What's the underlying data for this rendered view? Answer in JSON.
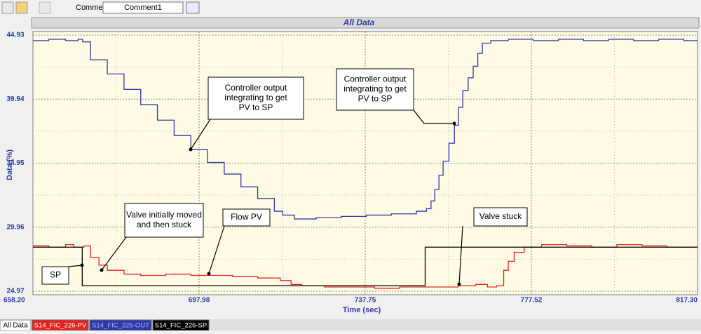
{
  "toolbar": {
    "comment_label": "Comment",
    "comment_value": "Comment1"
  },
  "tabs": [
    "All Data"
  ],
  "chart_data": {
    "type": "line",
    "title": "All Data",
    "x_label": "Time (sec)",
    "y_label": "Data (%)",
    "xlim": [
      658.2,
      817.3
    ],
    "xticks": [
      {
        "value": 658.2,
        "label": "658.20"
      },
      697.98,
      737.75,
      777.52,
      {
        "value": 817.3,
        "label": "817.30"
      }
    ],
    "ylim": [
      24.97,
      44.93
    ],
    "yticks": [
      24.97,
      29.96,
      34.95,
      39.94,
      44.93
    ],
    "grid": true,
    "series": [
      {
        "name": "S14_FIC_226-PV",
        "color": "#e8231e",
        "x": [
          658.2,
          662,
          666,
          668,
          670.4,
          672,
          674,
          676,
          680,
          684,
          690,
          696,
          700.7,
          706,
          712,
          717.4,
          720,
          722.5,
          728,
          734,
          740,
          746,
          752,
          755.8,
          760,
          764.2,
          767,
          769.2,
          770.9,
          772,
          773.4,
          775.8,
          780,
          786,
          792,
          798,
          804,
          810,
          817.3
        ],
        "values": [
          28.5,
          28.4,
          28.6,
          28.4,
          28.5,
          27.6,
          27.0,
          26.6,
          26.3,
          26.2,
          26.3,
          26.2,
          26.2,
          26.1,
          26.0,
          25.8,
          25.5,
          25.4,
          25.3,
          25.3,
          25.2,
          25.3,
          25.3,
          25.3,
          25.4,
          25.5,
          25.3,
          25.4,
          26.6,
          27.3,
          28.0,
          28.4,
          28.6,
          28.5,
          28.4,
          28.6,
          28.5,
          28.4,
          28.5
        ]
      },
      {
        "name": "S14_FIC_226-OUT",
        "color": "#2e3aa8",
        "x": [
          658.2,
          662,
          666,
          669,
          670.1,
          672,
          676,
          680,
          684,
          688,
          692,
          696,
          700,
          704,
          708,
          712,
          716,
          718,
          720.8,
          726,
          732,
          738,
          744,
          750,
          752.4,
          753.5,
          754.4,
          755.4,
          756.4,
          757.8,
          759.1,
          760.1,
          761.1,
          762.4,
          763.6,
          764.7,
          765.8,
          767.8,
          772,
          778,
          784,
          790,
          796,
          802,
          808,
          814,
          817.3
        ],
        "values": [
          44.5,
          44.6,
          44.5,
          44.6,
          44.4,
          43.0,
          41.9,
          40.7,
          39.5,
          38.3,
          37.1,
          36.0,
          35.0,
          34.1,
          33.1,
          32.2,
          31.2,
          30.9,
          30.6,
          30.7,
          30.8,
          30.9,
          31.0,
          31.2,
          31.4,
          32.0,
          32.9,
          34.0,
          35.1,
          36.5,
          37.9,
          39.3,
          40.6,
          41.6,
          42.5,
          43.5,
          44.3,
          44.5,
          44.6,
          44.5,
          44.6,
          44.5,
          44.6,
          44.5,
          44.6,
          44.5,
          44.5
        ]
      },
      {
        "name": "S14_FIC_226-SP",
        "color": "#000000",
        "x": [
          658.2,
          670.0,
          670.0,
          752.1,
          752.1,
          817.3
        ],
        "values": [
          28.4,
          28.4,
          25.4,
          25.4,
          28.4,
          28.4
        ]
      }
    ],
    "annotations": [
      {
        "lines": [
          "Controller output",
          "integrating to get",
          "PV to SP"
        ]
      },
      {
        "lines": [
          "Controller output",
          "integrating to get",
          "PV to SP"
        ]
      },
      {
        "lines": [
          "Valve initially moved",
          "and then stuck"
        ]
      },
      {
        "lines": [
          "Flow PV"
        ]
      },
      {
        "lines": [
          "Valve stuck"
        ]
      },
      {
        "lines": [
          "SP"
        ]
      }
    ]
  }
}
